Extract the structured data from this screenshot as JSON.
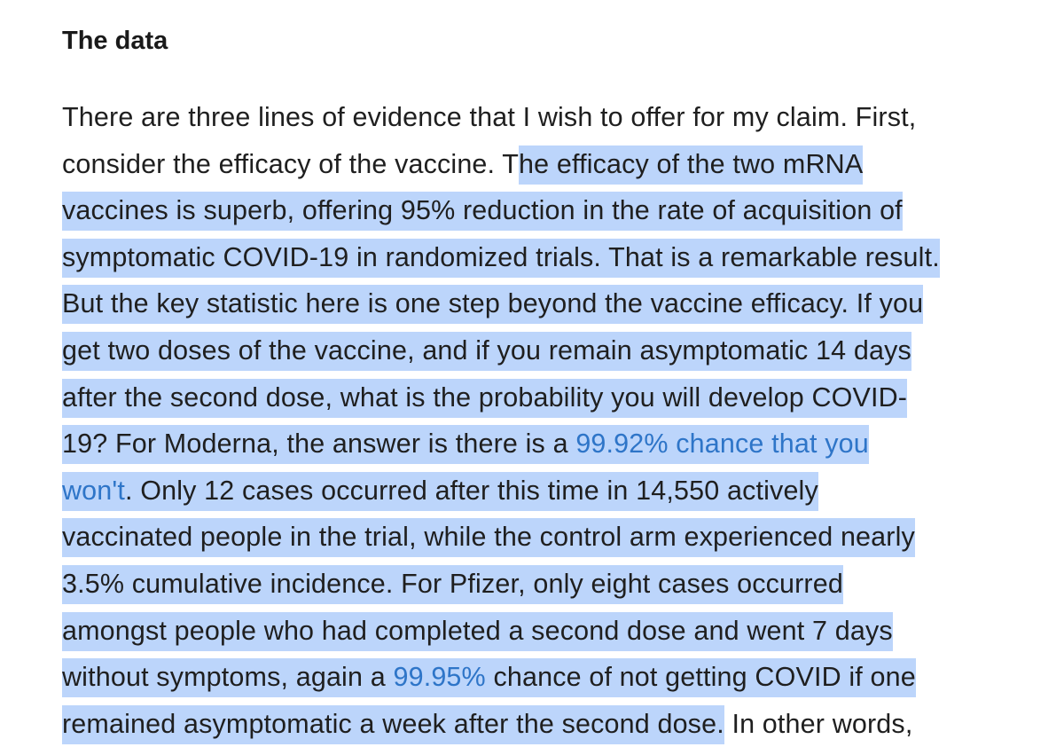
{
  "heading": "The data",
  "paragraph": {
    "line1": "There are three lines of evidence that I wish to offer for my claim. First,",
    "line2_plain": "consider the efficacy of the vaccine. T",
    "line2_sel": "he efficacy of the two mRNA",
    "line3": "vaccines is superb, offering 95% reduction in the rate of acquisition of",
    "line4": "symptomatic COVID-19 in randomized trials. That is a remarkable result.",
    "line5": "But the key statistic here is one step beyond the vaccine efficacy. If you",
    "line6": "get two doses of the vaccine, and if you remain asymptomatic 14 days",
    "line7": "after the second dose, what is the probability you will develop COVID-",
    "line8_pre": "19? For Moderna, the answer is there is a ",
    "line8_link": "99.92% chance that you",
    "line9_link": "won't",
    "line9_post": ". Only 12 cases occurred after this time in 14,550 actively",
    "line10": "vaccinated people in the trial, while the control arm experienced nearly",
    "line11": "3.5% cumulative incidence. For Pfizer, only eight cases occurred",
    "line12": "amongst people who had completed a second dose and went 7 days",
    "line13_pre": "without symptoms, again a ",
    "line13_link": "99.95%",
    "line13_post": " chance of not getting COVID if one",
    "line14_sel": "remained asymptomatic a week after the second dose.",
    "line14_plain": " In other words,"
  },
  "colors": {
    "selection": "#bcd5fb",
    "link": "#2e75c8",
    "text": "#1f1f1f"
  }
}
